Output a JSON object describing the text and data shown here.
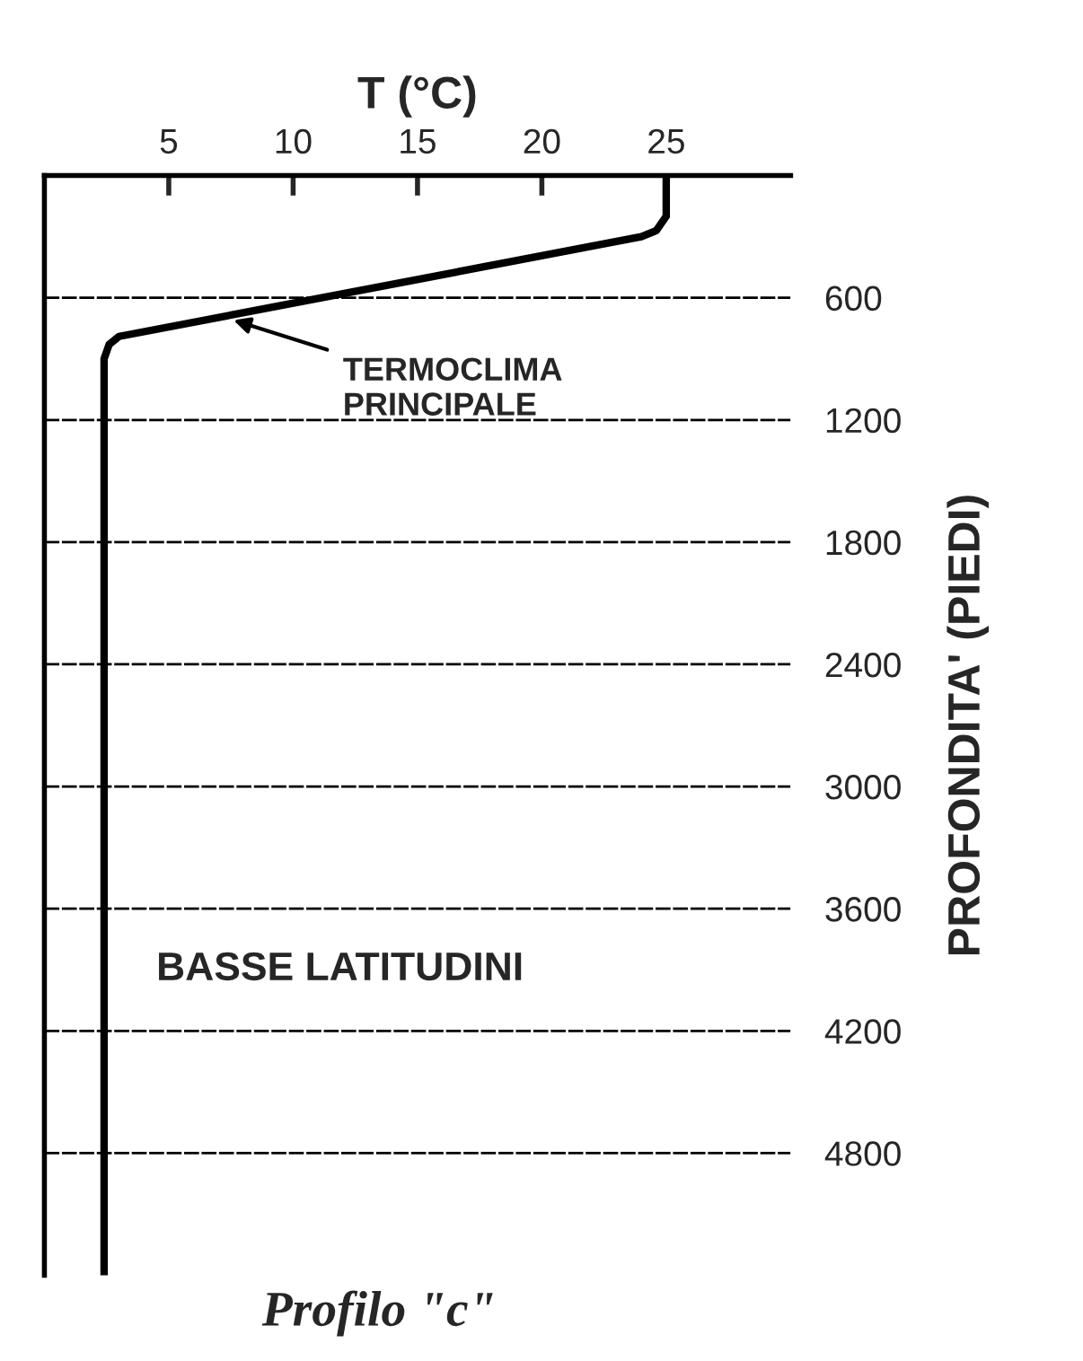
{
  "chart_data": {
    "type": "line",
    "xlabel": "T (°C)",
    "ylabel": "PROFONDITA' (PIEDI)",
    "title": "Profilo \"c\"",
    "x": [
      25,
      25,
      24.6,
      24,
      3,
      2.6,
      2.4,
      2.4
    ],
    "series": [
      {
        "color": "#000000",
        "values": [
          0,
          200,
          270,
          300,
          790,
          830,
          900,
          5400
        ]
      }
    ],
    "xlim": [
      0,
      30
    ],
    "xticks": [
      5,
      10,
      15,
      20,
      25
    ],
    "ylim": [
      5400,
      0
    ],
    "yticks": [
      600,
      1200,
      1800,
      2400,
      3000,
      3600,
      4200,
      4800
    ],
    "grid": "y",
    "line_style": "solid",
    "marker": "none",
    "annotations": [
      {
        "text": "TERMOCLIMA\nPRINCIPALE",
        "x": 7.6,
        "y": 710
      },
      "BASSE LATITUDINI"
    ]
  }
}
